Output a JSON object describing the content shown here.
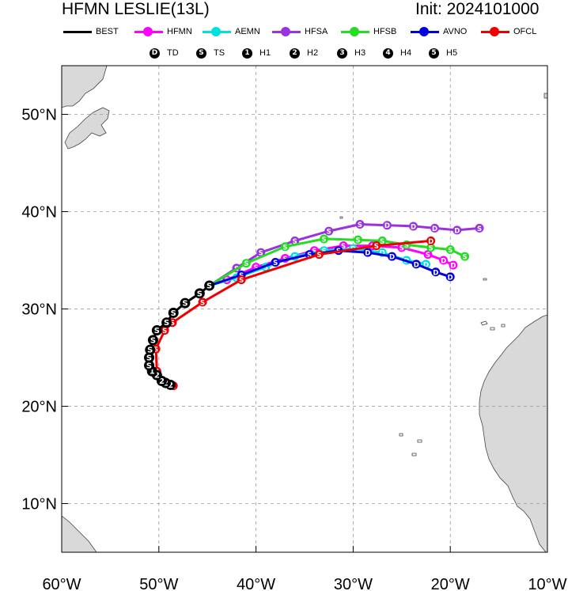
{
  "title": "HFMN LESLIE(13L)",
  "init_label": "Init: 2024101000",
  "legend": [
    {
      "name": "BEST",
      "color": "#000000"
    },
    {
      "name": "HFMN",
      "color": "#ff00ff"
    },
    {
      "name": "AEMN",
      "color": "#00e0e0"
    },
    {
      "name": "HFSA",
      "color": "#9933dd"
    },
    {
      "name": "HFSB",
      "color": "#22dd22"
    },
    {
      "name": "AVNO",
      "color": "#0000dd"
    },
    {
      "name": "OFCL",
      "color": "#ee0000"
    }
  ],
  "categories": [
    {
      "sym": "D",
      "label": "TD"
    },
    {
      "sym": "S",
      "label": "TS"
    },
    {
      "sym": "1",
      "label": "H1"
    },
    {
      "sym": "2",
      "label": "H2"
    },
    {
      "sym": "3",
      "label": "H3"
    },
    {
      "sym": "4",
      "label": "H4"
    },
    {
      "sym": "5",
      "label": "H5"
    }
  ],
  "chart_data": {
    "type": "map-track",
    "xlim": [
      -60,
      -10
    ],
    "ylim": [
      5,
      55
    ],
    "xticks": [
      -60,
      -50,
      -40,
      -30,
      -20,
      -10
    ],
    "xtick_labels": [
      "60°W",
      "50°W",
      "40°W",
      "30°W",
      "20°W",
      "10°W"
    ],
    "yticks": [
      10,
      20,
      30,
      40,
      50
    ],
    "ytick_labels": [
      "10°N",
      "20°N",
      "30°N",
      "40°N",
      "50°N"
    ],
    "grid": true,
    "tracks": [
      {
        "name": "BEST",
        "color": "#000000",
        "points": [
          [
            -48.8,
            22.2,
            "2"
          ],
          [
            -49.3,
            22.4,
            "2"
          ],
          [
            -49.7,
            22.6,
            "2"
          ],
          [
            -50.2,
            23.2,
            "2"
          ],
          [
            -50.7,
            23.6,
            "1"
          ],
          [
            -51.0,
            24.2,
            "S"
          ],
          [
            -51.0,
            25.0,
            "S"
          ],
          [
            -50.9,
            25.8,
            "S"
          ],
          [
            -50.6,
            26.8,
            "S"
          ],
          [
            -50.2,
            27.8,
            "S"
          ],
          [
            -49.2,
            28.6,
            "S"
          ],
          [
            -48.5,
            29.6,
            "S"
          ],
          [
            -47.3,
            30.6,
            "S"
          ],
          [
            -45.8,
            31.6,
            "S"
          ],
          [
            -44.8,
            32.4,
            "S"
          ]
        ]
      },
      {
        "name": "HFMN",
        "color": "#ff00ff",
        "points": [
          [
            -44.8,
            32.4,
            "S"
          ],
          [
            -43.0,
            33.0,
            "S"
          ],
          [
            -40.0,
            34.3,
            "S"
          ],
          [
            -37.0,
            35.2,
            "S"
          ],
          [
            -34.0,
            36.0,
            "S"
          ],
          [
            -31.0,
            36.5,
            "S"
          ],
          [
            -28.0,
            36.5,
            "S"
          ],
          [
            -25.0,
            36.3,
            "S"
          ],
          [
            -22.3,
            35.6,
            "S"
          ],
          [
            -20.7,
            35.0,
            "D"
          ],
          [
            -19.7,
            34.5,
            "D"
          ]
        ]
      },
      {
        "name": "AEMN",
        "color": "#00e0e0",
        "points": [
          [
            -44.8,
            32.4,
            "S"
          ],
          [
            -42.0,
            33.2,
            "S"
          ],
          [
            -39.0,
            34.3,
            "S"
          ],
          [
            -36.0,
            35.4,
            "S"
          ],
          [
            -33.0,
            36.0,
            "S"
          ],
          [
            -30.0,
            36.2,
            "D"
          ],
          [
            -27.0,
            35.8,
            "D"
          ],
          [
            -24.5,
            35.0,
            "D"
          ],
          [
            -22.5,
            34.6,
            "D"
          ]
        ]
      },
      {
        "name": "HFSA",
        "color": "#9933dd",
        "points": [
          [
            -44.8,
            32.4,
            "S"
          ],
          [
            -42.0,
            34.2,
            "S"
          ],
          [
            -39.5,
            35.8,
            "S"
          ],
          [
            -36.0,
            37.0,
            "S"
          ],
          [
            -32.5,
            38.0,
            "S"
          ],
          [
            -29.3,
            38.7,
            "S"
          ],
          [
            -26.5,
            38.6,
            "D"
          ],
          [
            -23.8,
            38.5,
            "D"
          ],
          [
            -21.6,
            38.3,
            "D"
          ],
          [
            -19.3,
            38.1,
            "D"
          ],
          [
            -17.0,
            38.3,
            "S"
          ]
        ]
      },
      {
        "name": "HFSB",
        "color": "#22dd22",
        "points": [
          [
            -44.8,
            32.4,
            "S"
          ],
          [
            -41.0,
            34.7,
            "S"
          ],
          [
            -37.0,
            36.4,
            "S"
          ],
          [
            -33.0,
            37.2,
            "S"
          ],
          [
            -29.5,
            37.1,
            "S"
          ],
          [
            -27.0,
            37.0,
            "S"
          ],
          [
            -24.5,
            36.6,
            "S"
          ],
          [
            -22.0,
            36.3,
            "S"
          ],
          [
            -20.0,
            36.1,
            "S"
          ],
          [
            -18.5,
            35.4,
            "S"
          ]
        ]
      },
      {
        "name": "AVNO",
        "color": "#0000dd",
        "points": [
          [
            -44.8,
            32.4,
            "S"
          ],
          [
            -41.5,
            33.5,
            "S"
          ],
          [
            -38.0,
            34.8,
            "S"
          ],
          [
            -34.5,
            35.6,
            "S"
          ],
          [
            -31.5,
            36.0,
            "S"
          ],
          [
            -28.5,
            35.8,
            "D"
          ],
          [
            -26.0,
            35.4,
            "D"
          ],
          [
            -23.5,
            34.6,
            "D"
          ],
          [
            -21.5,
            33.8,
            "D"
          ],
          [
            -20.0,
            33.3,
            "D"
          ]
        ]
      },
      {
        "name": "OFCL",
        "color": "#ee0000",
        "points": [
          [
            -48.5,
            22.1,
            "2"
          ],
          [
            -49.6,
            22.6,
            "2"
          ],
          [
            -50.2,
            23.6,
            "2"
          ],
          [
            -50.3,
            25.9,
            "S"
          ],
          [
            -49.4,
            27.8,
            "S"
          ],
          [
            -48.6,
            28.6,
            "S"
          ],
          [
            -45.5,
            30.7,
            "S"
          ],
          [
            -41.5,
            33.0,
            "S"
          ],
          [
            -33.5,
            35.6,
            "S"
          ],
          [
            -27.6,
            36.5,
            "S"
          ],
          [
            -22.0,
            37.0,
            "D"
          ]
        ]
      }
    ]
  }
}
